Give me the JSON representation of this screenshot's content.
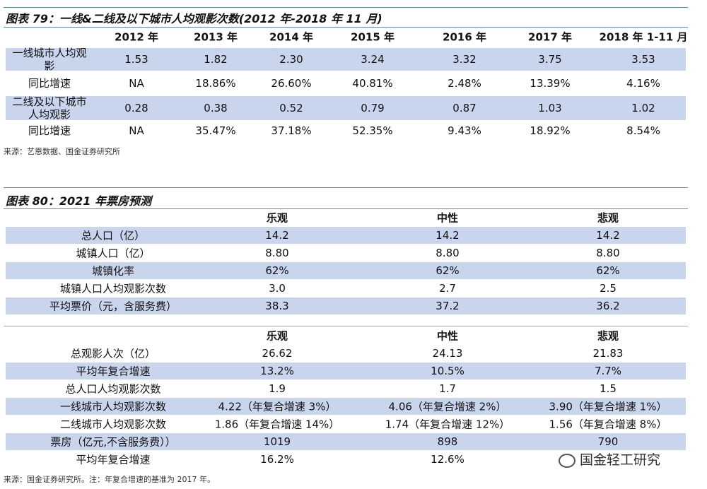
{
  "table1": {
    "title": "图表 79：一线&二线及以下城市人均观影次数(2012 年-2018 年 11 月)",
    "header": [
      "2012 年",
      "2013 年",
      "2014 年",
      "2015 年",
      "2016 年",
      "2017 年",
      "2018 年 1-11 月"
    ],
    "rows": [
      [
        "一线城市人均观影",
        "1.53",
        "1.82",
        "2.30",
        "3.24",
        "3.32",
        "3.75",
        "3.53"
      ],
      [
        "同比增速",
        "NA",
        "18.86%",
        "26.60%",
        "40.81%",
        "2.48%",
        "13.39%",
        "4.16%"
      ],
      [
        "二线及以下城市人均观影",
        "0.28",
        "0.38",
        "0.52",
        "0.79",
        "0.87",
        "1.03",
        "1.02"
      ],
      [
        "同比增速",
        "NA",
        "35.47%",
        "37.18%",
        "52.35%",
        "9.43%",
        "18.92%",
        "8.54%"
      ]
    ],
    "source": "来源：艺恩数据、国金证券研究所"
  },
  "table2": {
    "title": "图表 80：2021 年票房预测",
    "part1": {
      "header": [
        "乐观",
        "中性",
        "悲观"
      ],
      "rows": [
        [
          "总人口（亿）",
          "14.2",
          "14.2",
          "14.2"
        ],
        [
          "城镇人口（亿）",
          "8.80",
          "8.80",
          "8.80"
        ],
        [
          "城镇化率",
          "62%",
          "62%",
          "62%"
        ],
        [
          "城镇人口人均观影次数",
          "3.0",
          "2.7",
          "2.5"
        ],
        [
          "平均票价（元，含服务费）",
          "38.3",
          "37.2",
          "36.2"
        ]
      ]
    },
    "part2": {
      "header": [
        "乐观",
        "中性",
        "悲观"
      ],
      "rows": [
        [
          "总观影人次（亿）",
          "26.62",
          "24.13",
          "21.83"
        ],
        [
          "平均年复合增速",
          "13.2%",
          "10.5%",
          "7.7%"
        ],
        [
          "总人口人均观影次数",
          "1.9",
          "1.7",
          "1.5"
        ],
        [
          "一线城市人均观影次数",
          "4.22（年复合增速 3%）",
          "4.06（年复合增速 2%）",
          "3.90（年复合增速 1%）"
        ],
        [
          "二线城市人均观影次数",
          "1.86（年复合增速 14%）",
          "1.74（年复合增速 12%）",
          "1.56（年复合增速 8%）"
        ],
        [
          "票房（亿元,不含服务费））",
          "1019",
          "898",
          "790"
        ],
        [
          "平均年复合增速",
          "16.2%",
          "12.6%",
          ""
        ]
      ]
    },
    "source": "来源：国金证券研究所。注：年复合增速的基准为 2017 年。"
  },
  "watermark": "国金轻工研究"
}
